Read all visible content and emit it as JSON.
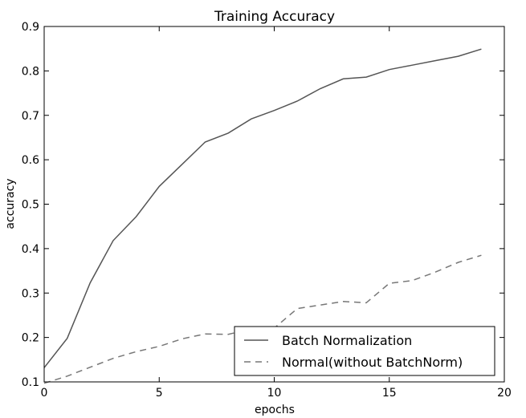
{
  "chart_data": {
    "type": "line",
    "title": "Training Accuracy",
    "xlabel": "epochs",
    "ylabel": "accuracy",
    "xlim": [
      0,
      20
    ],
    "ylim": [
      0.1,
      0.9
    ],
    "xticks": [
      0,
      5,
      10,
      15,
      20
    ],
    "yticks": [
      0.1,
      0.2,
      0.3,
      0.4,
      0.5,
      0.6,
      0.7,
      0.8,
      0.9
    ],
    "grid": false,
    "legend_position": "bottom-right",
    "x": [
      0,
      1,
      2,
      3,
      4,
      5,
      6,
      7,
      8,
      9,
      10,
      11,
      12,
      13,
      14,
      15,
      16,
      17,
      18,
      19
    ],
    "series": [
      {
        "name": "Batch Normalization",
        "style": "solid",
        "color": "#555555",
        "values": [
          0.132,
          0.198,
          0.323,
          0.418,
          0.472,
          0.54,
          0.59,
          0.64,
          0.66,
          0.692,
          0.711,
          0.732,
          0.76,
          0.782,
          0.786,
          0.803,
          0.813,
          0.823,
          0.833,
          0.849
        ]
      },
      {
        "name": "Normal(without BatchNorm)",
        "style": "dashed",
        "color": "#777777",
        "values": [
          0.097,
          0.113,
          0.133,
          0.153,
          0.168,
          0.18,
          0.197,
          0.208,
          0.207,
          0.219,
          0.221,
          0.265,
          0.273,
          0.281,
          0.278,
          0.322,
          0.328,
          0.347,
          0.369,
          0.385
        ]
      }
    ]
  }
}
